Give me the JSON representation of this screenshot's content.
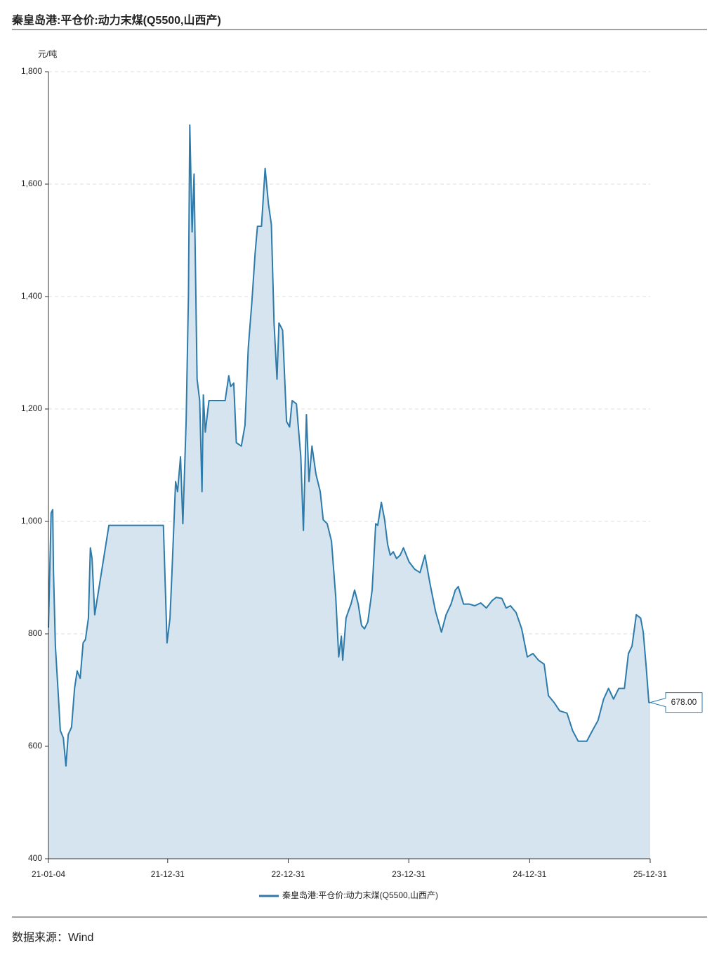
{
  "chart_data": {
    "type": "area",
    "title": "秦皇岛港:平仓价:动力末煤(Q5500,山西产)",
    "y_unit": "元/吨",
    "source": "数据来源：Wind",
    "x": [
      "21-01-04",
      "21-01-12",
      "21-01-17",
      "21-01-19",
      "21-01-25",
      "21-02-03",
      "21-02-09",
      "21-02-18",
      "21-02-26",
      "21-03-05",
      "21-03-15",
      "21-03-24",
      "21-04-01",
      "21-04-10",
      "21-04-19",
      "21-04-26",
      "21-05-05",
      "21-05-11",
      "21-05-16",
      "21-05-24",
      "21-07-06",
      "21-12-18",
      "21-12-29",
      "22-01-07",
      "22-01-13",
      "22-01-24",
      "22-01-30",
      "22-02-08",
      "22-02-15",
      "22-02-25",
      "22-03-04",
      "22-03-08",
      "22-03-15",
      "22-03-21",
      "22-03-30",
      "22-04-07",
      "22-04-14",
      "22-04-18",
      "22-04-24",
      "22-05-05",
      "22-06-23",
      "22-07-04",
      "22-07-10",
      "22-07-19",
      "22-07-27",
      "22-08-11",
      "22-08-22",
      "22-09-01",
      "22-09-12",
      "22-09-22",
      "22-09-29",
      "22-10-11",
      "22-10-22",
      "22-11-01",
      "22-11-10",
      "22-11-18",
      "22-11-27",
      "22-12-03",
      "22-12-14",
      "22-12-26",
      "23-01-04",
      "23-01-12",
      "23-01-25",
      "23-02-07",
      "23-02-15",
      "23-02-24",
      "23-03-04",
      "23-03-13",
      "23-03-25",
      "23-04-07",
      "23-04-16",
      "23-04-28",
      "23-05-11",
      "23-05-24",
      "23-06-02",
      "23-06-10",
      "23-06-14",
      "23-06-24",
      "23-07-01",
      "23-07-09",
      "23-07-20",
      "23-07-31",
      "23-08-10",
      "23-08-19",
      "23-08-29",
      "23-09-11",
      "23-09-22",
      "23-09-28",
      "23-10-09",
      "23-10-19",
      "23-10-28",
      "23-11-05",
      "23-11-14",
      "23-11-24",
      "23-12-05",
      "23-12-15",
      "24-01-01",
      "24-01-18",
      "24-02-03",
      "24-02-18",
      "24-03-04",
      "24-03-21",
      "24-04-08",
      "24-04-22",
      "24-05-07",
      "24-05-20",
      "24-05-29",
      "24-06-14",
      "24-07-01",
      "24-07-18",
      "24-08-05",
      "24-08-22",
      "24-09-08",
      "24-09-21",
      "24-10-08",
      "24-10-21",
      "24-11-03",
      "24-11-20",
      "24-12-07",
      "24-12-24",
      "25-01-10",
      "25-01-27",
      "25-02-13",
      "25-02-26",
      "25-03-15",
      "25-04-01",
      "25-04-23",
      "25-05-10",
      "25-05-27",
      "25-06-22",
      "25-07-09",
      "25-07-26",
      "25-08-12",
      "25-08-27",
      "25-09-11",
      "25-09-27",
      "25-10-14",
      "25-10-26",
      "25-11-06",
      "25-11-19",
      "25-12-02",
      "25-12-10",
      "25-12-19",
      "25-12-27",
      "25-12-31"
    ],
    "series": [
      {
        "name": "秦皇岛港:平仓价:动力末煤(Q5500,山西产)",
        "color": "#2c7bab",
        "fill": "#d5e4ee",
        "values": [
          811,
          1015,
          1021,
          915,
          778,
          690,
          628,
          615,
          565,
          621,
          634,
          703,
          734,
          721,
          784,
          790,
          828,
          953,
          934,
          834,
          993,
          993,
          784,
          828,
          909,
          1071,
          1053,
          1115,
          996,
          1178,
          1403,
          1705,
          1515,
          1618,
          1253,
          1215,
          1053,
          1225,
          1159,
          1215,
          1215,
          1259,
          1240,
          1246,
          1140,
          1134,
          1171,
          1309,
          1390,
          1478,
          1525,
          1525,
          1628,
          1565,
          1528,
          1353,
          1253,
          1353,
          1340,
          1178,
          1168,
          1215,
          1209,
          1115,
          984,
          1190,
          1071,
          1134,
          1084,
          1053,
          1003,
          996,
          965,
          865,
          759,
          796,
          753,
          828,
          840,
          853,
          878,
          853,
          815,
          809,
          821,
          878,
          996,
          993,
          1034,
          1003,
          959,
          940,
          946,
          934,
          940,
          953,
          928,
          915,
          909,
          940,
          890,
          840,
          803,
          834,
          853,
          878,
          884,
          853,
          853,
          850,
          855,
          846,
          859,
          865,
          863,
          846,
          850,
          838,
          809,
          759,
          765,
          753,
          746,
          690,
          678,
          663,
          659,
          628,
          609,
          609,
          628,
          646,
          684,
          703,
          684,
          703,
          703,
          765,
          778,
          834,
          828,
          803,
          740,
          678,
          678
        ],
        "value_labels": [
          null,
          null,
          null,
          null,
          null,
          null,
          null,
          null,
          null,
          null,
          null,
          null,
          null,
          null,
          null,
          null,
          null,
          null,
          null,
          null,
          null,
          null,
          null,
          null,
          null,
          null,
          null,
          null,
          null,
          null,
          null,
          null,
          null,
          null,
          null,
          null,
          null,
          null,
          null,
          null,
          null,
          null,
          null,
          null,
          null,
          null,
          null,
          null,
          null,
          null,
          null,
          null,
          null,
          null,
          null,
          null,
          null,
          null,
          null,
          null,
          null,
          null,
          null,
          null,
          null,
          null,
          null,
          null,
          null,
          null,
          null,
          null,
          null,
          null,
          null,
          null,
          null,
          null,
          null,
          null,
          null,
          null,
          null,
          null,
          null,
          null,
          null,
          null,
          null,
          null,
          null,
          null,
          null,
          null,
          null,
          null,
          null,
          null,
          null,
          null,
          null,
          null,
          null,
          null,
          null,
          null,
          null,
          null,
          null,
          null,
          null,
          null,
          null,
          null,
          null,
          null,
          null,
          null,
          null,
          null,
          null,
          null,
          null,
          null,
          null,
          null,
          null,
          null,
          null,
          null,
          null,
          null,
          null,
          null,
          null,
          null,
          null,
          null,
          null,
          null,
          null,
          null,
          null,
          null,
          "678.00"
        ]
      }
    ],
    "xlim": [
      "21-01-04",
      "25-12-31"
    ],
    "xticks": [
      "21-01-04",
      "21-12-31",
      "22-12-31",
      "23-12-31",
      "24-12-31",
      "25-12-31"
    ],
    "ylim": [
      400,
      1800
    ],
    "yticks": [
      400,
      600,
      800,
      {
        "value": 1000,
        "label": "1,000"
      },
      {
        "value": 1200,
        "label": "1,200"
      },
      {
        "value": 1400,
        "label": "1,400"
      },
      {
        "value": 1600,
        "label": "1,600"
      },
      {
        "value": 1800,
        "label": "1,800"
      }
    ],
    "grid": true
  }
}
